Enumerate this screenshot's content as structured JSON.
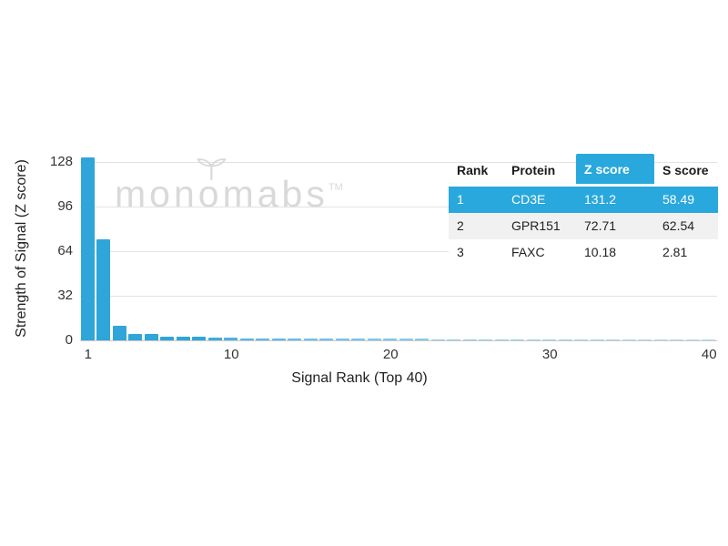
{
  "watermark": {
    "prefix": "mon",
    "o": "o",
    "suffix": "mabs",
    "tm": "TM"
  },
  "colors": {
    "bar": "#2fa5d9",
    "highlight": "#29a8dd",
    "row_alt": "#f1f1f1",
    "watermark": "#d9d9d9"
  },
  "chart_data": {
    "type": "bar",
    "title": "",
    "xlabel": "Signal Rank (Top 40)",
    "ylabel": "Strength of Signal (Z score)",
    "ylim": [
      0,
      128
    ],
    "yticks": [
      0,
      32,
      64,
      96,
      128
    ],
    "xticks": [
      1,
      10,
      20,
      30,
      40
    ],
    "grid": "horizontal",
    "legend": "none",
    "x_range_ranks": [
      1,
      40
    ],
    "values": [
      131.2,
      72.71,
      10.18,
      4.7,
      4.7,
      2.6,
      2.5,
      2.5,
      1.9,
      1.7,
      1.6,
      1.5,
      1.5,
      1.4,
      1.3,
      1.3,
      1.2,
      1.2,
      1.1,
      1.1,
      1.0,
      1.0,
      0.9,
      0.9,
      0.9,
      0.8,
      0.8,
      0.8,
      0.7,
      0.7,
      0.7,
      0.6,
      0.6,
      0.6,
      0.5,
      0.5,
      0.5,
      0.5,
      0.4,
      0.4
    ]
  },
  "table": {
    "headers": [
      "Rank",
      "Protein",
      "Z score",
      "S score"
    ],
    "highlighted_header_index": 2,
    "highlighted_row_index": 0,
    "rows": [
      [
        "1",
        "CD3E",
        "131.2",
        "58.49"
      ],
      [
        "2",
        "GPR151",
        "72.71",
        "62.54"
      ],
      [
        "3",
        "FAXC",
        "10.18",
        "2.81"
      ]
    ]
  }
}
